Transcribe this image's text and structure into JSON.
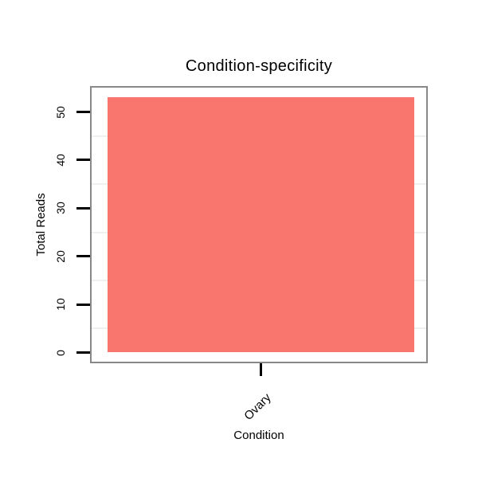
{
  "chart_data": {
    "type": "bar",
    "title": "Condition-specificity",
    "xlabel": "Condition",
    "ylabel": "Total Reads",
    "categories": [
      "Ovary"
    ],
    "values": [
      53
    ],
    "ylim": [
      0,
      55
    ],
    "yticks": [
      0,
      10,
      20,
      30,
      40,
      50
    ],
    "minor_gridlines": [
      5,
      15,
      25,
      35,
      45
    ],
    "grid": "minor horizontal gridlines only",
    "legend": "none",
    "colors": {
      "bar_fill": "#F8766D",
      "plot_border": "#888888",
      "minor_gridline": "#f0f0f0",
      "axis_text": "#000000",
      "tick_mark": "#000000"
    }
  }
}
